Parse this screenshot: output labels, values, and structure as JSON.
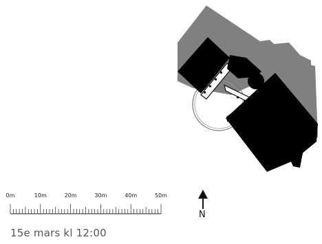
{
  "scale_bar": {
    "labels": [
      "0m",
      "10m",
      "20m",
      "30m",
      "40m",
      "50m"
    ]
  },
  "north": {
    "label": "N"
  },
  "caption": "15e mars kl 12:00"
}
